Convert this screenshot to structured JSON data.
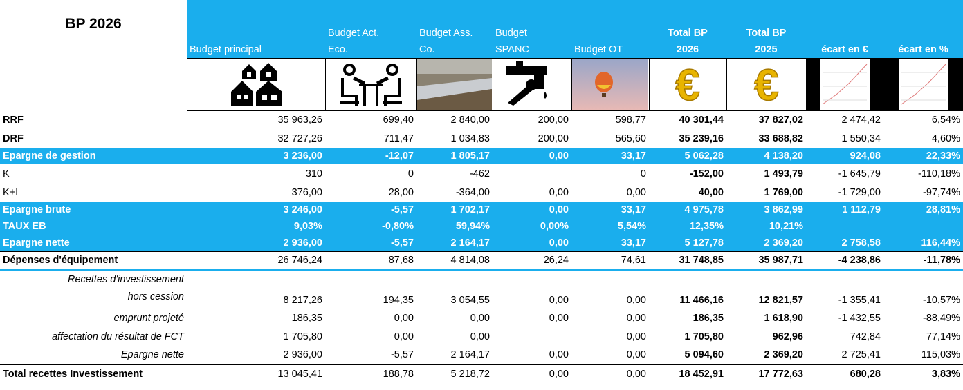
{
  "title": "BP 2026",
  "columns": [
    [
      "Budget principal"
    ],
    [
      "Budget Act.",
      "Eco."
    ],
    [
      "Budget Ass.",
      "Co."
    ],
    [
      "Budget",
      "SPANC"
    ],
    [
      "Budget OT"
    ],
    [
      "Total BP",
      "2026"
    ],
    [
      "Total BP",
      "2025"
    ],
    [
      "écart en €"
    ],
    [
      "écart en %"
    ]
  ],
  "rows": [
    {
      "label": [
        "RRF"
      ],
      "cells": [
        "35 963,26",
        "699,40",
        "2 840,00",
        "200,00",
        "598,77",
        "40 301,44",
        "37 827,02",
        "2 474,42",
        "6,54%"
      ]
    },
    {
      "label": [
        "DRF"
      ],
      "cells": [
        "32 727,26",
        "711,47",
        "1 034,83",
        "200,00",
        "565,60",
        "35 239,16",
        "33 688,82",
        "1 550,34",
        "4,60%"
      ]
    },
    {
      "label": [
        "Epargne de gestion"
      ],
      "cells": [
        "3 236,00",
        "-12,07",
        "1 805,17",
        "0,00",
        "33,17",
        "5 062,28",
        "4 138,20",
        "924,08",
        "22,33%"
      ]
    },
    {
      "label": [
        "K"
      ],
      "cells": [
        "310",
        "0",
        "-462",
        null,
        "0",
        "-152,00",
        "1 493,79",
        "-1 645,79",
        "-110,18%"
      ]
    },
    {
      "label": [
        "K+I"
      ],
      "cells": [
        "376,00",
        "28,00",
        "-364,00",
        "0,00",
        "0,00",
        "40,00",
        "1 769,00",
        "-1 729,00",
        "-97,74%"
      ]
    },
    {
      "label": [
        "Epargne brute"
      ],
      "cells": [
        "3 246,00",
        "-5,57",
        "1 702,17",
        "0,00",
        "33,17",
        "4 975,78",
        "3 862,99",
        "1 112,79",
        "28,81%"
      ]
    },
    {
      "label": [
        "TAUX EB"
      ],
      "cells": [
        "9,03%",
        "-0,80%",
        "59,94%",
        "0,00%",
        "5,54%",
        "12,35%",
        "10,21%",
        null,
        null
      ]
    },
    {
      "label": [
        "Epargne nette"
      ],
      "cells": [
        "2 936,00",
        "-5,57",
        "2 164,17",
        "0,00",
        "33,17",
        "5 127,78",
        "2 369,20",
        "2 758,58",
        "116,44%"
      ]
    },
    {
      "label": [
        "Dépenses d'équipement"
      ],
      "cells": [
        "26 746,24",
        "87,68",
        "4 814,08",
        "26,24",
        "74,61",
        "31 748,85",
        "35 987,71",
        "-4 238,86",
        "-11,78%"
      ]
    },
    {
      "label": [
        "Recettes d'investissement",
        "hors cession"
      ],
      "cells": [
        "8 217,26",
        "194,35",
        "3 054,55",
        "0,00",
        "0,00",
        "11 466,16",
        "12 821,57",
        "-1 355,41",
        "-10,57%"
      ]
    },
    {
      "label": [
        "emprunt projeté"
      ],
      "cells": [
        "186,35",
        "0,00",
        "0,00",
        "0,00",
        "0,00",
        "186,35",
        "1 618,90",
        "-1 432,55",
        "-88,49%"
      ]
    },
    {
      "label": [
        "affectation du résultat de FCT"
      ],
      "cells": [
        "1 705,80",
        "0,00",
        "0,00",
        null,
        "0,00",
        "1 705,80",
        "962,96",
        "742,84",
        "77,14%"
      ]
    },
    {
      "label": [
        "Epargne nette"
      ],
      "cells": [
        "2 936,00",
        "-5,57",
        "2 164,17",
        "0,00",
        "0,00",
        "5 094,60",
        "2 369,20",
        "2 725,41",
        "115,03%"
      ]
    },
    {
      "label": [
        "Total recettes Investissement"
      ],
      "cells": [
        "13 045,41",
        "188,78",
        "5 218,72",
        "0,00",
        "0,00",
        "18 452,91",
        "17 772,63",
        "680,28",
        "3,83%"
      ]
    }
  ]
}
